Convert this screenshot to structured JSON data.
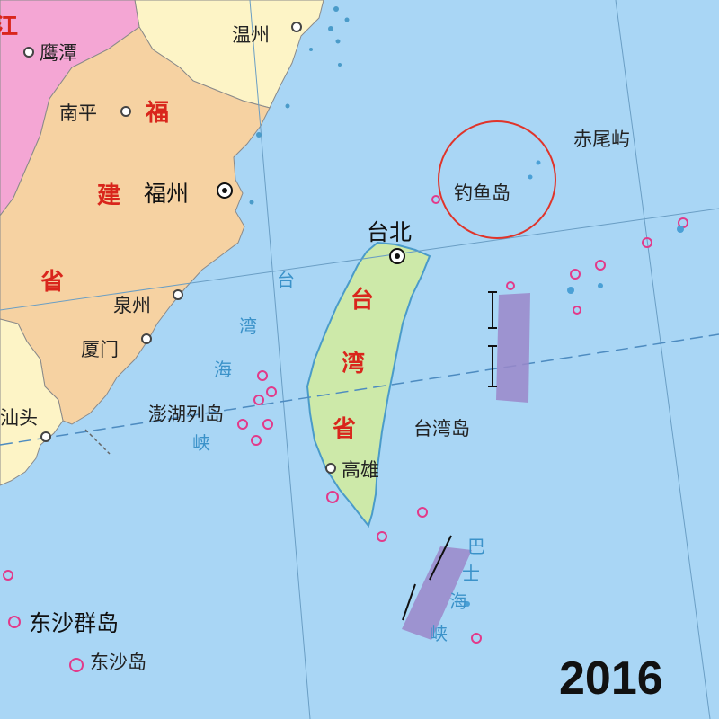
{
  "year": "2016",
  "colors": {
    "sea": "#a9d6f5",
    "fujian": "#f6d2a2",
    "taiwan": "#cde9a9",
    "zhejiang": "#fdf4c6",
    "jiangxi": "#f4a6d4",
    "guangdong": "#fdf4c6",
    "province_label": "#d9261c",
    "sea_label": "#3b92c9",
    "circle": "#e0342a",
    "coral_reef": "#e23a8a",
    "trench": "#9b87c9"
  },
  "labels": {
    "jiangxi_fragment": "江",
    "yingtan": "鹰潭",
    "wenzhou": "温州",
    "nanping": "南平",
    "fuzhou": "福州",
    "quanzhou": "泉州",
    "xiamen": "厦门",
    "shantou": "汕头",
    "fujian_1": "福",
    "fujian_2": "建",
    "fujian_3": "省",
    "taipei": "台北",
    "taiwan_prov_1": "台",
    "taiwan_prov_2": "湾",
    "taiwan_prov_3": "省",
    "taiwan_island": "台湾岛",
    "kaohsiung": "高雄",
    "penghu": "澎湖列岛",
    "diaoyu": "钓鱼岛",
    "chiwei": "赤尾屿",
    "dongsha_islands": "东沙群岛",
    "dongsha_island": "东沙岛",
    "strait_1": "台",
    "strait_2": "湾",
    "strait_3": "海",
    "strait_4": "峡",
    "bashi_1": "巴",
    "bashi_2": "士",
    "bashi_3": "海",
    "bashi_4": "峡"
  }
}
